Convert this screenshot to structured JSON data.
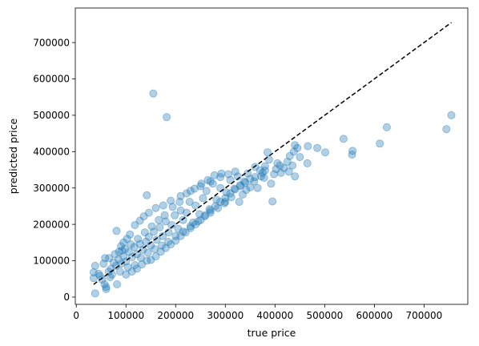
{
  "chart_data": {
    "type": "scatter",
    "title": "",
    "xlabel": "true price",
    "ylabel": "predicted price",
    "xlim": [
      -2000,
      788000
    ],
    "ylim": [
      -20000,
      795000
    ],
    "xticks": [
      0,
      100000,
      200000,
      300000,
      400000,
      500000,
      600000,
      700000
    ],
    "yticks": [
      0,
      100000,
      200000,
      300000,
      400000,
      500000,
      600000,
      700000
    ],
    "xtick_labels": [
      "0",
      "100000",
      "200000",
      "300000",
      "400000",
      "500000",
      "600000",
      "700000"
    ],
    "ytick_labels": [
      "0",
      "100000",
      "200000",
      "300000",
      "400000",
      "500000",
      "600000",
      "700000"
    ],
    "grid": false,
    "marker_color": "#1f77b4",
    "marker_alpha": 0.35,
    "reference_line": {
      "style": "dashed",
      "color": "#000000",
      "x": [
        34900,
        755000
      ],
      "y": [
        34900,
        755000
      ]
    },
    "points": [
      [
        155000,
        560000
      ],
      [
        182000,
        495000
      ],
      [
        755000,
        500000
      ],
      [
        745000,
        462000
      ],
      [
        625000,
        467000
      ],
      [
        611000,
        422000
      ],
      [
        556000,
        402000
      ],
      [
        555000,
        392000
      ],
      [
        538000,
        435000
      ],
      [
        501000,
        398000
      ],
      [
        485000,
        410000
      ],
      [
        466000,
        415000
      ],
      [
        465000,
        368000
      ],
      [
        450000,
        385000
      ],
      [
        440000,
        418000
      ],
      [
        445000,
        410000
      ],
      [
        438000,
        400000
      ],
      [
        430000,
        388000
      ],
      [
        425000,
        372000
      ],
      [
        440000,
        332000
      ],
      [
        412000,
        342000
      ],
      [
        402000,
        352000
      ],
      [
        395000,
        263000
      ],
      [
        392000,
        312000
      ],
      [
        385000,
        398000
      ],
      [
        380000,
        360000
      ],
      [
        375000,
        342000
      ],
      [
        372000,
        332000
      ],
      [
        360000,
        358000
      ],
      [
        350000,
        302000
      ],
      [
        345000,
        340000
      ],
      [
        338000,
        318000
      ],
      [
        330000,
        308000
      ],
      [
        325000,
        332000
      ],
      [
        318000,
        298000
      ],
      [
        310000,
        322000
      ],
      [
        302000,
        288000
      ],
      [
        298000,
        258000
      ],
      [
        290000,
        300000
      ],
      [
        282000,
        268000
      ],
      [
        275000,
        312000
      ],
      [
        268000,
        242000
      ],
      [
        262000,
        292000
      ],
      [
        255000,
        272000
      ],
      [
        248000,
        228000
      ],
      [
        240000,
        252000
      ],
      [
        235000,
        205000
      ],
      [
        228000,
        262000
      ],
      [
        222000,
        232000
      ],
      [
        215000,
        212000
      ],
      [
        210000,
        238000
      ],
      [
        205000,
        188000
      ],
      [
        198000,
        225000
      ],
      [
        192000,
        198000
      ],
      [
        186000,
        178000
      ],
      [
        180000,
        208000
      ],
      [
        174000,
        168000
      ],
      [
        168000,
        192000
      ],
      [
        162000,
        158000
      ],
      [
        156000,
        180000
      ],
      [
        150000,
        142000
      ],
      [
        146000,
        166000
      ],
      [
        140000,
        152000
      ],
      [
        134000,
        130000
      ],
      [
        128000,
        146000
      ],
      [
        122000,
        118000
      ],
      [
        117000,
        138000
      ],
      [
        112000,
        110000
      ],
      [
        106000,
        124000
      ],
      [
        100000,
        98000
      ],
      [
        95000,
        112000
      ],
      [
        90000,
        92000
      ],
      [
        85000,
        104000
      ],
      [
        80000,
        86000
      ],
      [
        75000,
        95000
      ],
      [
        142000,
        280000
      ],
      [
        81000,
        182000
      ],
      [
        66000,
        107000
      ],
      [
        58000,
        107000
      ],
      [
        55000,
        92000
      ],
      [
        60000,
        22000
      ],
      [
        60000,
        28000
      ],
      [
        57000,
        35000
      ],
      [
        38000,
        10000
      ],
      [
        35000,
        68000
      ],
      [
        35000,
        52000
      ],
      [
        38000,
        86000
      ],
      [
        45000,
        64000
      ],
      [
        48000,
        58000
      ],
      [
        52000,
        48000
      ],
      [
        65000,
        70000
      ],
      [
        70000,
        78000
      ],
      [
        68000,
        55000
      ],
      [
        72000,
        62000
      ],
      [
        82000,
        35000
      ],
      [
        88000,
        70000
      ],
      [
        92000,
        128000
      ],
      [
        98000,
        132000
      ],
      [
        104000,
        82000
      ],
      [
        110000,
        145000
      ],
      [
        118000,
        88000
      ],
      [
        124000,
        160000
      ],
      [
        130000,
        108000
      ],
      [
        138000,
        178000
      ],
      [
        144000,
        122000
      ],
      [
        152000,
        194000
      ],
      [
        158000,
        132000
      ],
      [
        166000,
        212000
      ],
      [
        172000,
        142000
      ],
      [
        178000,
        225000
      ],
      [
        185000,
        152000
      ],
      [
        194000,
        248000
      ],
      [
        200000,
        168000
      ],
      [
        208000,
        262000
      ],
      [
        215000,
        180000
      ],
      [
        222000,
        285000
      ],
      [
        230000,
        195000
      ],
      [
        238000,
        298000
      ],
      [
        245000,
        208000
      ],
      [
        252000,
        312000
      ],
      [
        258000,
        222000
      ],
      [
        265000,
        322000
      ],
      [
        270000,
        232000
      ],
      [
        278000,
        335000
      ],
      [
        285000,
        245000
      ],
      [
        292000,
        340000
      ],
      [
        300000,
        262000
      ],
      [
        306000,
        338000
      ],
      [
        312000,
        275000
      ],
      [
        320000,
        345000
      ],
      [
        328000,
        262000
      ],
      [
        335000,
        282000
      ],
      [
        342000,
        295000
      ],
      [
        350000,
        325000
      ],
      [
        358000,
        318000
      ],
      [
        365000,
        300000
      ],
      [
        370000,
        348000
      ],
      [
        378000,
        328000
      ],
      [
        388000,
        378000
      ],
      [
        398000,
        338000
      ],
      [
        405000,
        368000
      ],
      [
        418000,
        355000
      ],
      [
        428000,
        345000
      ],
      [
        435000,
        362000
      ],
      [
        118000,
        198000
      ],
      [
        128000,
        210000
      ],
      [
        136000,
        222000
      ],
      [
        146000,
        232000
      ],
      [
        90000,
        140000
      ],
      [
        95000,
        150000
      ],
      [
        102000,
        160000
      ],
      [
        108000,
        172000
      ],
      [
        150000,
        102000
      ],
      [
        160000,
        112000
      ],
      [
        170000,
        125000
      ],
      [
        180000,
        135000
      ],
      [
        190000,
        145000
      ],
      [
        200000,
        155000
      ],
      [
        210000,
        168000
      ],
      [
        220000,
        178000
      ],
      [
        230000,
        190000
      ],
      [
        240000,
        200000
      ],
      [
        250000,
        212000
      ],
      [
        260000,
        225000
      ],
      [
        270000,
        238000
      ],
      [
        280000,
        250000
      ],
      [
        290000,
        262000
      ],
      [
        300000,
        272000
      ],
      [
        310000,
        285000
      ],
      [
        320000,
        296000
      ],
      [
        330000,
        305000
      ],
      [
        340000,
        315000
      ],
      [
        360000,
        330000
      ],
      [
        380000,
        348000
      ],
      [
        410000,
        362000
      ],
      [
        210000,
        278000
      ],
      [
        230000,
        292000
      ],
      [
        250000,
        305000
      ],
      [
        270000,
        318000
      ],
      [
        290000,
        330000
      ],
      [
        160000,
        245000
      ],
      [
        175000,
        252000
      ],
      [
        190000,
        265000
      ],
      [
        78000,
        118000
      ],
      [
        86000,
        125000
      ],
      [
        112000,
        70000
      ],
      [
        122000,
        78000
      ],
      [
        132000,
        90000
      ],
      [
        142000,
        100000
      ],
      [
        100000,
        62000
      ]
    ]
  }
}
